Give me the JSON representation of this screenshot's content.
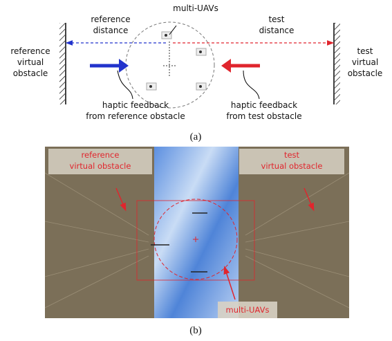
{
  "panel_a": {
    "multi_uavs": "multi-UAVs",
    "reference_distance": [
      "reference",
      "distance"
    ],
    "test_distance": [
      "test",
      "distance"
    ],
    "reference_obstacle": [
      "reference",
      "virtual",
      "obstacle"
    ],
    "test_obstacle": [
      "test",
      "virtual",
      "obstacle"
    ],
    "reference_feedback": [
      "haptic feedback",
      "from reference obstacle"
    ],
    "test_feedback": [
      "haptic feedback",
      "from test obstacle"
    ],
    "caption": "(a)"
  },
  "panel_b": {
    "reference_obstacle": [
      "reference",
      "virtual obstacle"
    ],
    "test_obstacle": [
      "test",
      "virtual obstacle"
    ],
    "multi_uavs": "multi-UAVs",
    "caption": "(b)"
  }
}
